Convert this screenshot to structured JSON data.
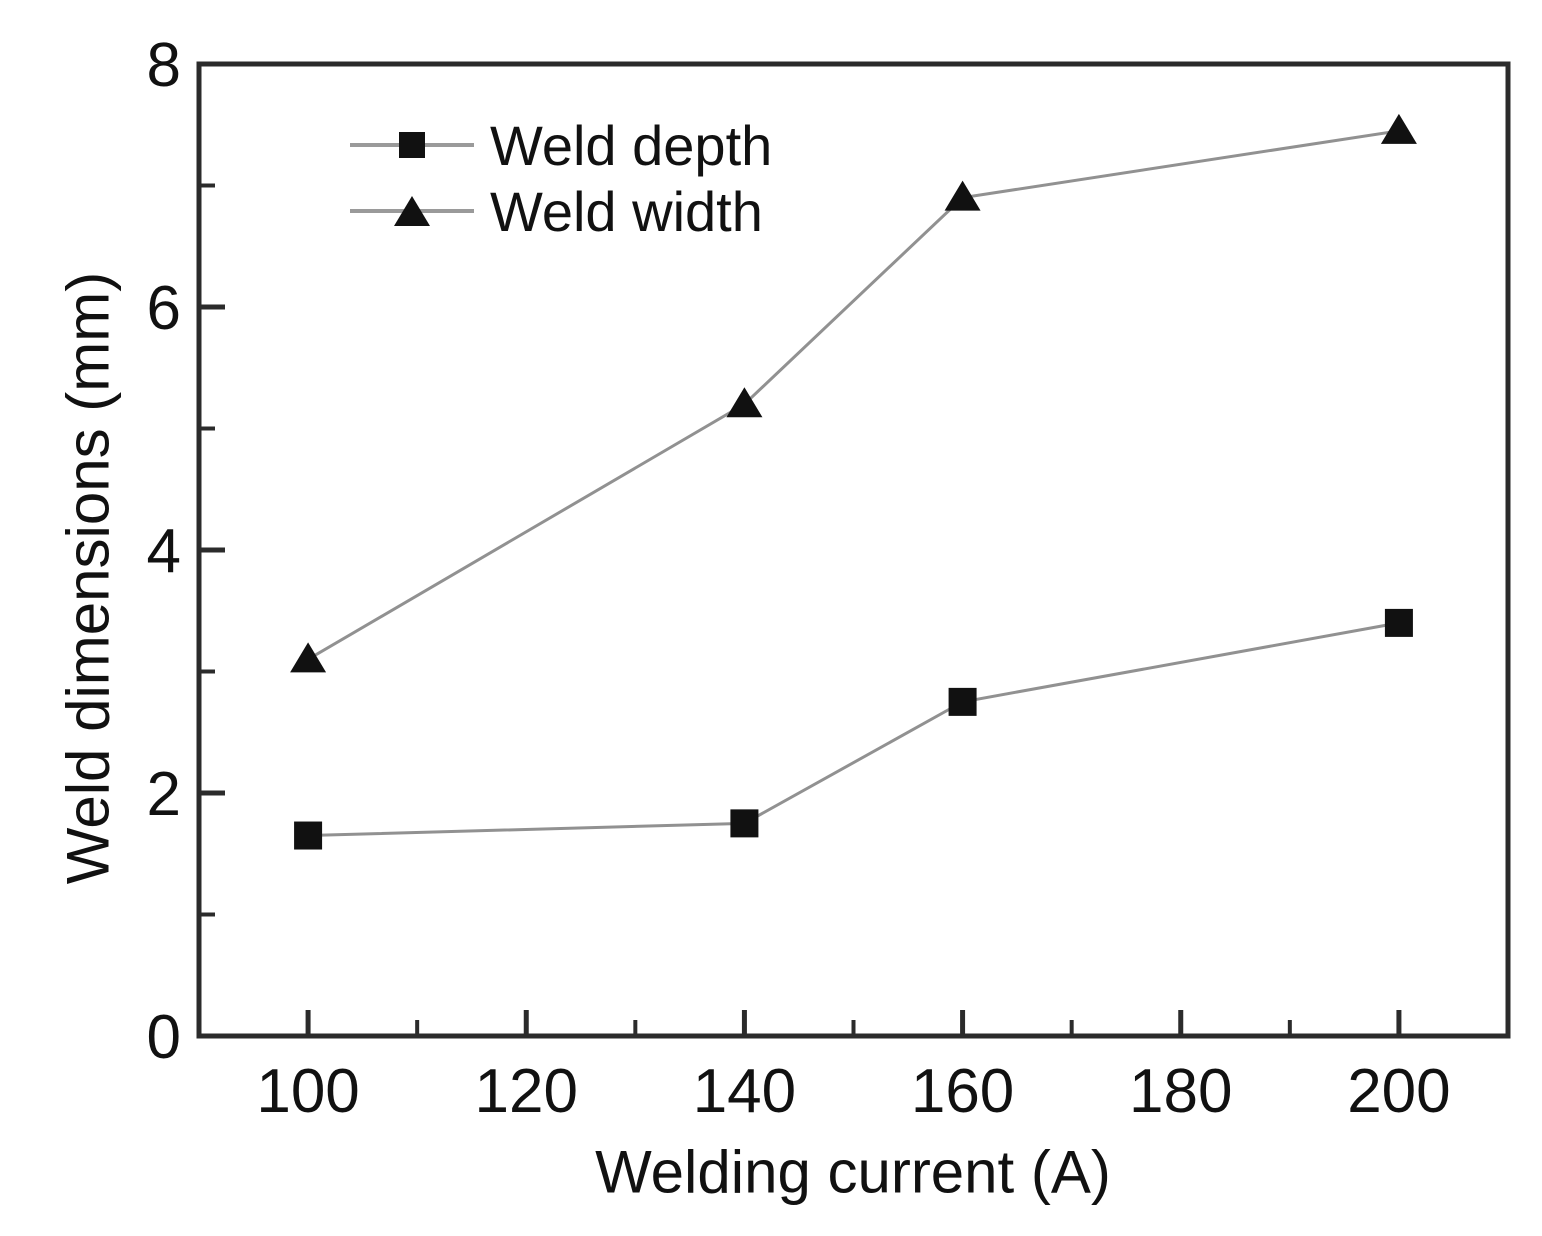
{
  "chart_data": {
    "type": "line",
    "title": "",
    "xlabel": "Welding current (A)",
    "ylabel": "Weld dimensions (mm)",
    "x": [
      100,
      140,
      160,
      200
    ],
    "series": [
      {
        "name": "Weld depth",
        "marker": "square",
        "values": [
          1.65,
          1.75,
          2.75,
          3.4
        ]
      },
      {
        "name": "Weld width",
        "marker": "triangle",
        "values": [
          3.1,
          5.2,
          6.9,
          7.45
        ]
      }
    ],
    "xlim": [
      90,
      210
    ],
    "ylim": [
      0,
      8
    ],
    "x_major_ticks": [
      100,
      120,
      140,
      160,
      180,
      200
    ],
    "x_minor_ticks": [
      110,
      130,
      150,
      170,
      190
    ],
    "y_major_ticks": [
      0,
      2,
      4,
      6,
      8
    ],
    "y_minor_ticks": [
      1,
      3,
      5,
      7
    ],
    "grid": false,
    "legend_position": "upper-left-inside",
    "colors": {
      "background": "#ffffff",
      "frame": "#2b2b2b",
      "line": "#919191",
      "marker": "#111111",
      "text": "#111111"
    }
  }
}
